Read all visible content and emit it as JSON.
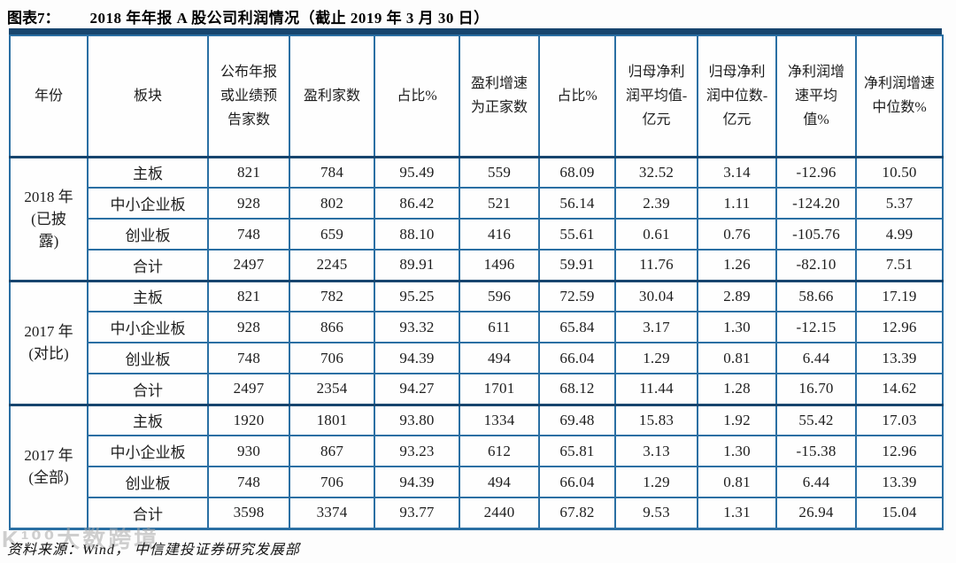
{
  "title": {
    "label": "图表7：",
    "text": "2018 年年报 A 股公司利润情况（截止 2019 年 3 月 30 日）"
  },
  "colors": {
    "border-thick": "#17456e",
    "border-thin": "#2a6fa3",
    "text-color": "#1d1d1d",
    "watermark-color": "#a9a9a9"
  },
  "table": {
    "headers": [
      "年份",
      "板块",
      "公布年报或业绩预告家数",
      "盈利家数",
      "占比%",
      "盈利增速为正家数",
      "占比%",
      "归母净利润平均值-亿元",
      "归母净利润中位数-亿元",
      "净利润增速平均值%",
      "净利润增速中位数%"
    ],
    "groups": [
      {
        "year": "2018 年\n(已披\n露)",
        "rows": [
          {
            "board": "主板",
            "values": [
              "821",
              "784",
              "95.49",
              "559",
              "68.09",
              "32.52",
              "3.14",
              "-12.96",
              "10.50"
            ]
          },
          {
            "board": "中小企业板",
            "values": [
              "928",
              "802",
              "86.42",
              "521",
              "56.14",
              "2.39",
              "1.11",
              "-124.20",
              "5.37"
            ]
          },
          {
            "board": "创业板",
            "values": [
              "748",
              "659",
              "88.10",
              "416",
              "55.61",
              "0.61",
              "0.76",
              "-105.76",
              "4.99"
            ]
          },
          {
            "board": "合计",
            "values": [
              "2497",
              "2245",
              "89.91",
              "1496",
              "59.91",
              "11.76",
              "1.26",
              "-82.10",
              "7.51"
            ]
          }
        ]
      },
      {
        "year": "2017 年\n(对比)",
        "rows": [
          {
            "board": "主板",
            "values": [
              "821",
              "782",
              "95.25",
              "596",
              "72.59",
              "30.04",
              "2.89",
              "58.66",
              "17.19"
            ]
          },
          {
            "board": "中小企业板",
            "values": [
              "928",
              "866",
              "93.32",
              "611",
              "65.84",
              "3.17",
              "1.30",
              "-12.15",
              "12.96"
            ]
          },
          {
            "board": "创业板",
            "values": [
              "748",
              "706",
              "94.39",
              "494",
              "66.04",
              "1.29",
              "0.81",
              "6.44",
              "13.39"
            ]
          },
          {
            "board": "合计",
            "values": [
              "2497",
              "2354",
              "94.27",
              "1701",
              "68.12",
              "11.44",
              "1.28",
              "16.70",
              "14.62"
            ]
          }
        ]
      },
      {
        "year": "2017 年\n(全部)",
        "rows": [
          {
            "board": "主板",
            "values": [
              "1920",
              "1801",
              "93.80",
              "1334",
              "69.48",
              "15.83",
              "1.92",
              "55.42",
              "17.03"
            ]
          },
          {
            "board": "中小企业板",
            "values": [
              "930",
              "867",
              "93.23",
              "612",
              "65.81",
              "3.13",
              "1.30",
              "-15.38",
              "12.96"
            ]
          },
          {
            "board": "创业板",
            "values": [
              "748",
              "706",
              "94.39",
              "494",
              "66.04",
              "1.29",
              "0.81",
              "6.44",
              "13.39"
            ]
          },
          {
            "board": "合计",
            "values": [
              "3598",
              "3374",
              "93.77",
              "2440",
              "67.82",
              "9.53",
              "1.31",
              "26.94",
              "15.04"
            ]
          }
        ]
      }
    ]
  },
  "footer": {
    "source_label": "资料来源：Wind，  中信建投证券研究发展部"
  },
  "watermark": {
    "text": "K¹⁰⁰大数跨境"
  }
}
